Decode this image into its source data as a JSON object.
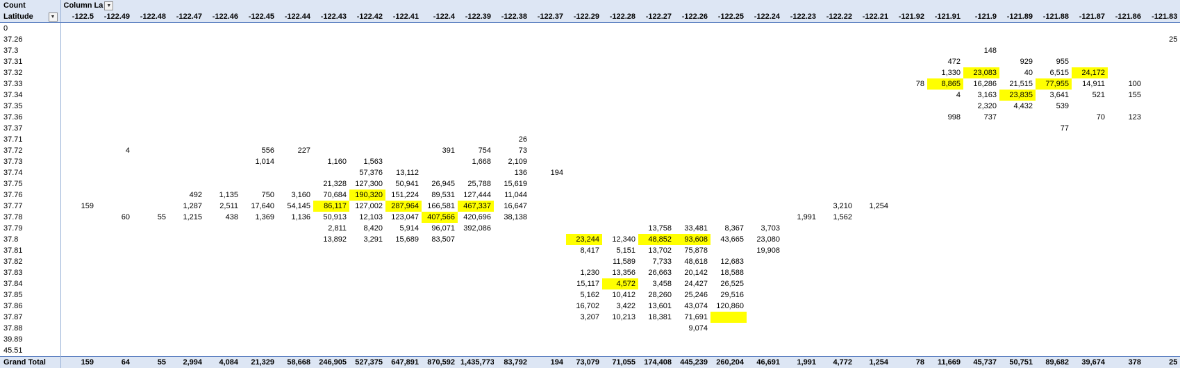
{
  "pivot": {
    "corner_label": "Count",
    "column_field_label": "Column La",
    "row_field_label": "Latitude",
    "grand_total_label": "Grand Total",
    "dropdown_icon": "chevron-down-icon",
    "highlight_color": "#ffff00",
    "header_color": "#dde6f4",
    "columns": [
      "-122.5",
      "-122.49",
      "-122.48",
      "-122.47",
      "-122.46",
      "-122.45",
      "-122.44",
      "-122.43",
      "-122.42",
      "-122.41",
      "-122.4",
      "-122.39",
      "-122.38",
      "-122.37",
      "-122.29",
      "-122.28",
      "-122.27",
      "-122.26",
      "-122.25",
      "-122.24",
      "-122.23",
      "-122.22",
      "-122.21",
      "-121.92",
      "-121.91",
      "-121.9",
      "-121.89",
      "-121.88",
      "-121.87",
      "-121.86",
      "-121.83"
    ],
    "rows": [
      {
        "label": "0",
        "cells": {}
      },
      {
        "label": "37.26",
        "cells": {
          "30": "25"
        }
      },
      {
        "label": "37.3",
        "cells": {
          "25": "148"
        }
      },
      {
        "label": "37.31",
        "cells": {
          "24": "472",
          "26": "929",
          "27": "955"
        }
      },
      {
        "label": "37.32",
        "cells": {
          "24": "1,330",
          "25": "23,083",
          "26": "40",
          "27": "6,515",
          "28": "24,172"
        }
      },
      {
        "label": "37.33",
        "cells": {
          "23": "78",
          "24": "8,865",
          "25": "16,286",
          "26": "21,515",
          "27": "77,955",
          "28": "14,911",
          "29": "100"
        }
      },
      {
        "label": "37.34",
        "cells": {
          "24": "4",
          "25": "3,163",
          "26": "23,835",
          "27": "3,641",
          "28": "521",
          "29": "155"
        }
      },
      {
        "label": "37.35",
        "cells": {
          "25": "2,320",
          "26": "4,432",
          "27": "539"
        }
      },
      {
        "label": "37.36",
        "cells": {
          "24": "998",
          "25": "737",
          "28": "70",
          "29": "123"
        }
      },
      {
        "label": "37.37",
        "cells": {
          "27": "77"
        }
      },
      {
        "label": "37.71",
        "cells": {
          "12": "26"
        }
      },
      {
        "label": "37.72",
        "cells": {
          "1": "4",
          "5": "556",
          "6": "227",
          "10": "391",
          "11": "754",
          "12": "73"
        }
      },
      {
        "label": "37.73",
        "cells": {
          "5": "1,014",
          "7": "1,160",
          "8": "1,563",
          "11": "1,668",
          "12": "2,109"
        }
      },
      {
        "label": "37.74",
        "cells": {
          "8": "57,376",
          "9": "13,112",
          "12": "136",
          "13": "194"
        }
      },
      {
        "label": "37.75",
        "cells": {
          "7": "21,328",
          "8": "127,300",
          "9": "50,941",
          "10": "26,945",
          "11": "25,788",
          "12": "15,619"
        }
      },
      {
        "label": "37.76",
        "cells": {
          "3": "492",
          "4": "1,135",
          "5": "750",
          "6": "3,160",
          "7": "70,684",
          "8": "190,320",
          "9": "151,224",
          "10": "89,531",
          "11": "127,444",
          "12": "11,044"
        }
      },
      {
        "label": "37.77",
        "cells": {
          "0": "159",
          "3": "1,287",
          "4": "2,511",
          "5": "17,640",
          "6": "54,145",
          "7": "86,117",
          "8": "127,002",
          "9": "287,964",
          "10": "166,581",
          "11": "467,337",
          "12": "16,647",
          "21": "3,210",
          "22": "1,254"
        }
      },
      {
        "label": "37.78",
        "cells": {
          "1": "60",
          "2": "55",
          "3": "1,215",
          "4": "438",
          "5": "1,369",
          "6": "1,136",
          "7": "50,913",
          "8": "12,103",
          "9": "123,047",
          "10": "407,566",
          "11": "420,696",
          "12": "38,138",
          "20": "1,991",
          "21": "1,562"
        }
      },
      {
        "label": "37.79",
        "cells": {
          "7": "2,811",
          "8": "8,420",
          "9": "5,914",
          "10": "96,071",
          "11": "392,086",
          "16": "13,758",
          "17": "33,481",
          "18": "8,367",
          "19": "3,703"
        }
      },
      {
        "label": "37.8",
        "cells": {
          "7": "13,892",
          "8": "3,291",
          "9": "15,689",
          "10": "83,507",
          "14": "23,244",
          "15": "12,340",
          "16": "48,852",
          "17": "93,608",
          "18": "43,665",
          "19": "23,080"
        }
      },
      {
        "label": "37.81",
        "cells": {
          "14": "8,417",
          "15": "5,151",
          "16": "13,702",
          "17": "75,878",
          "19": "19,908"
        }
      },
      {
        "label": "37.82",
        "cells": {
          "15": "11,589",
          "16": "7,733",
          "17": "48,618",
          "18": "12,683"
        }
      },
      {
        "label": "37.83",
        "cells": {
          "14": "1,230",
          "15": "13,356",
          "16": "26,663",
          "17": "20,142",
          "18": "18,588"
        }
      },
      {
        "label": "37.84",
        "cells": {
          "14": "15,117",
          "15": "4,572",
          "16": "3,458",
          "17": "24,427",
          "18": "26,525"
        }
      },
      {
        "label": "37.85",
        "cells": {
          "14": "5,162",
          "15": "10,412",
          "16": "28,260",
          "17": "25,246",
          "18": "29,516"
        }
      },
      {
        "label": "37.86",
        "cells": {
          "14": "16,702",
          "15": "3,422",
          "16": "13,601",
          "17": "43,074",
          "18": "120,860"
        }
      },
      {
        "label": "37.87",
        "cells": {
          "14": "3,207",
          "15": "10,213",
          "16": "18,381",
          "17": "71,691"
        }
      },
      {
        "label": "37.88",
        "cells": {
          "17": "9,074"
        }
      },
      {
        "label": "39.89",
        "cells": {}
      },
      {
        "label": "45.51",
        "cells": {}
      }
    ],
    "highlighted": [
      "4:25",
      "4:28",
      "5:24",
      "5:27",
      "6:26",
      "15:8",
      "16:7",
      "16:9",
      "16:11",
      "17:10",
      "19:14",
      "19:16",
      "19:17",
      "23:15",
      "26:18"
    ],
    "grand_totals": [
      "159",
      "64",
      "55",
      "2,994",
      "4,084",
      "21,329",
      "58,668",
      "246,905",
      "527,375",
      "647,891",
      "870,592",
      "1,435,773",
      "83,792",
      "194",
      "73,079",
      "71,055",
      "174,408",
      "445,239",
      "260,204",
      "46,691",
      "1,991",
      "4,772",
      "1,254",
      "78",
      "11,669",
      "45,737",
      "50,751",
      "89,682",
      "39,674",
      "378",
      "25"
    ]
  }
}
